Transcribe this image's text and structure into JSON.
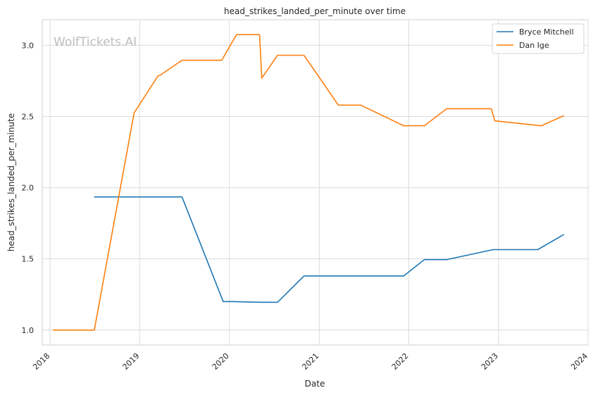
{
  "chart_data": {
    "type": "line",
    "title": "head_strikes_landed_per_minute over time",
    "xlabel": "Date",
    "ylabel": "head_strikes_landed_per_minute",
    "watermark": "WolfTickets.AI",
    "xlim": [
      "2017-11-30",
      "2024-01-01"
    ],
    "ylim": [
      0.895,
      3.18
    ],
    "x_ticks": [
      "2018",
      "2019",
      "2020",
      "2021",
      "2022",
      "2023",
      "2024"
    ],
    "y_ticks": [
      "1.0",
      "1.5",
      "2.0",
      "2.5",
      "3.0"
    ],
    "grid": true,
    "legend_position": "top-right",
    "series": [
      {
        "name": "Bryce Mitchell",
        "color": "#1f77b4",
        "points": [
          [
            "2018-07-01",
            1.935
          ],
          [
            "2019-06-22",
            1.935
          ],
          [
            "2019-12-07",
            1.2
          ],
          [
            "2020-01-10",
            1.2
          ],
          [
            "2020-05-08",
            1.195
          ],
          [
            "2020-07-15",
            1.195
          ],
          [
            "2020-10-31",
            1.38
          ],
          [
            "2021-12-11",
            1.38
          ],
          [
            "2022-03-05",
            1.495
          ],
          [
            "2022-06-04",
            1.495
          ],
          [
            "2022-12-10",
            1.565
          ],
          [
            "2023-06-10",
            1.565
          ],
          [
            "2023-09-23",
            1.67
          ]
        ]
      },
      {
        "name": "Dan Ige",
        "color": "#ff7f0e",
        "points": [
          [
            "2018-01-14",
            1.0
          ],
          [
            "2018-06-30",
            1.0
          ],
          [
            "2018-12-09",
            2.525
          ],
          [
            "2019-03-16",
            2.785
          ],
          [
            "2019-03-25",
            2.79
          ],
          [
            "2019-06-22",
            2.895
          ],
          [
            "2019-12-01",
            2.895
          ],
          [
            "2020-01-30",
            3.075
          ],
          [
            "2020-05-03",
            3.075
          ],
          [
            "2020-05-12",
            2.77
          ],
          [
            "2020-07-15",
            2.93
          ],
          [
            "2020-10-31",
            2.93
          ],
          [
            "2021-03-20",
            2.58
          ],
          [
            "2021-06-19",
            2.58
          ],
          [
            "2021-12-11",
            2.435
          ],
          [
            "2022-03-05",
            2.435
          ],
          [
            "2022-06-04",
            2.555
          ],
          [
            "2022-12-03",
            2.555
          ],
          [
            "2022-12-17",
            2.47
          ],
          [
            "2023-06-24",
            2.435
          ],
          [
            "2023-09-23",
            2.505
          ]
        ]
      }
    ]
  }
}
